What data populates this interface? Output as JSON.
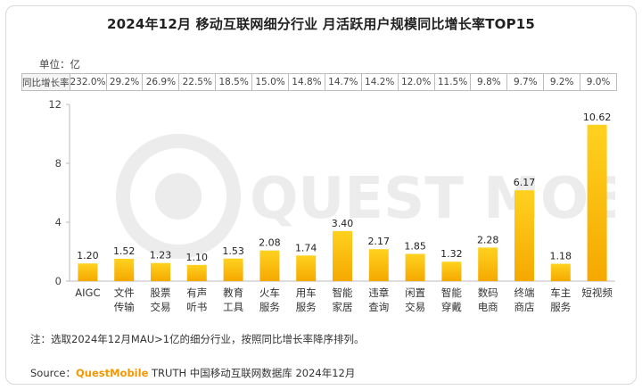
{
  "title": "2024年12月 移动互联网细分行业 月活跃用户规模同比增长率TOP15",
  "unit_label": "单位：亿",
  "growth_row_label": "同比增长率",
  "growth_rates": [
    "232.0%",
    "29.2%",
    "26.9%",
    "22.5%",
    "18.5%",
    "15.0%",
    "14.8%",
    "14.7%",
    "14.2%",
    "12.0%",
    "11.5%",
    "9.8%",
    "9.7%",
    "9.2%",
    "9.0%"
  ],
  "watermark_text": "QUEST MOBILE",
  "note": "注：选取2024年12月MAU>1亿的细分行业，按照同比增长率降序排列。",
  "source_prefix": "Source：",
  "source_brand": "QuestMobile",
  "source_rest": " TRUTH 中国移动互联网数据库 2024年12月",
  "colors": {
    "bar_top": "#ffd21f",
    "bar_bottom": "#f5a800",
    "accent": "#f39800"
  },
  "chart_data": {
    "type": "bar",
    "categories": [
      [
        "AIGC"
      ],
      [
        "文件",
        "传输"
      ],
      [
        "股票",
        "交易"
      ],
      [
        "有声",
        "听书"
      ],
      [
        "教育",
        "工具"
      ],
      [
        "火车",
        "服务"
      ],
      [
        "用车",
        "服务"
      ],
      [
        "智能",
        "家居"
      ],
      [
        "违章",
        "查询"
      ],
      [
        "闲置",
        "交易"
      ],
      [
        "智能",
        "穿戴"
      ],
      [
        "数码",
        "电商"
      ],
      [
        "终端",
        "商店"
      ],
      [
        "车主",
        "服务"
      ],
      [
        "短视频"
      ]
    ],
    "values": [
      1.2,
      1.52,
      1.23,
      1.1,
      1.53,
      2.08,
      1.74,
      3.4,
      2.17,
      1.85,
      1.32,
      2.28,
      6.17,
      1.18,
      10.62
    ],
    "value_labels": [
      "1.20",
      "1.52",
      "1.23",
      "1.10",
      "1.53",
      "2.08",
      "1.74",
      "3.40",
      "2.17",
      "1.85",
      "1.32",
      "2.28",
      "6.17",
      "1.18",
      "10.62"
    ],
    "ylim": [
      0,
      12
    ],
    "yticks": [
      0,
      4,
      8,
      12
    ],
    "grid": false
  }
}
